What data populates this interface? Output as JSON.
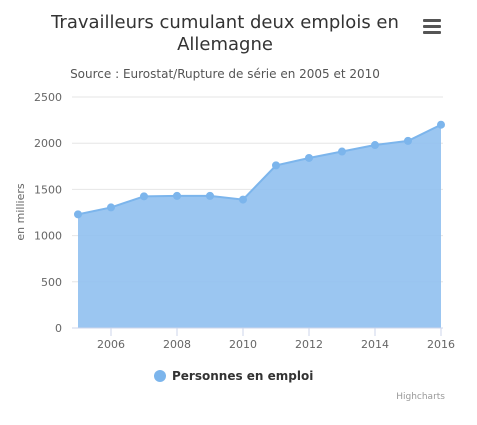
{
  "chart_title": "Travailleurs cumulant deux emplois en Allemagne",
  "chart_subtitle": "Source : Eurostat/Rupture de série en 2005 et 2010",
  "credits": "Highcharts",
  "menu_icon": "hamburger-menu-icon",
  "colors": {
    "series_fill": "#90c0f0",
    "series_line": "#7cb5ec",
    "grid": "#e6e6e6",
    "axis": "#ccd6eb"
  },
  "chart_data": {
    "type": "area",
    "title": "Travailleurs cumulant deux emplois en Allemagne",
    "subtitle": "Source : Eurostat/Rupture de série en 2005 et 2010",
    "xlabel": "",
    "ylabel": "en milliers",
    "ylim": [
      0,
      2500
    ],
    "yticks": [
      0,
      500,
      1000,
      1500,
      2000,
      2500
    ],
    "xticks": [
      2006,
      2008,
      2010,
      2012,
      2014,
      2016
    ],
    "xlim": [
      2005,
      2016
    ],
    "grid": true,
    "legend_position": "bottom",
    "series": [
      {
        "name": "Personnes en emploi",
        "x": [
          2005,
          2006,
          2007,
          2008,
          2009,
          2010,
          2011,
          2012,
          2013,
          2014,
          2015,
          2016
        ],
        "values": [
          1230,
          1305,
          1425,
          1430,
          1430,
          1390,
          1760,
          1840,
          1910,
          1980,
          2025,
          2200
        ]
      }
    ]
  }
}
